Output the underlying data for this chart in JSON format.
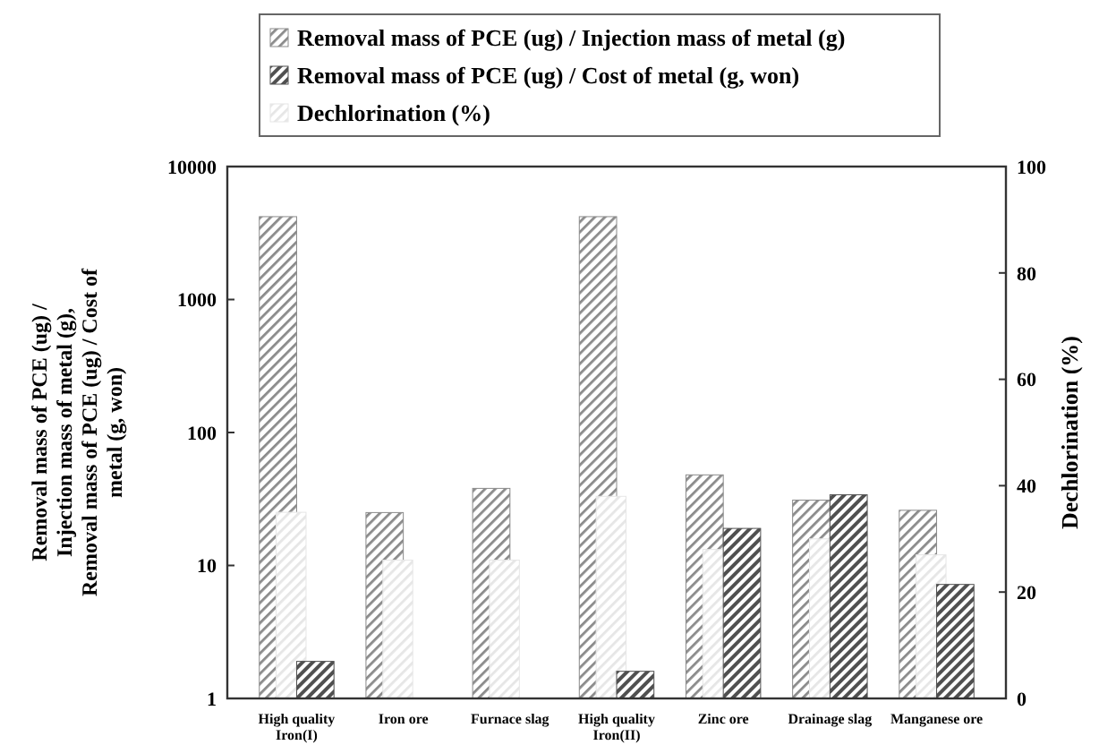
{
  "chart_data": {
    "type": "bar",
    "categories": [
      "High quality Iron(I)",
      "Iron ore",
      "Furnace slag",
      "High quality Iron(II)",
      "Zinc ore",
      "Drainage slag",
      "Manganese ore"
    ],
    "series": [
      {
        "name": "Removal mass of PCE (ug) / Injection mass of metal (g)",
        "color": "#8a8a8a",
        "values": [
          4200,
          25,
          38,
          4200,
          48,
          31,
          26
        ]
      },
      {
        "name": "Removal mass of PCE (ug) / Cost of metal (g, won)",
        "color": "#505050",
        "values": [
          1.9,
          null,
          null,
          1.6,
          19,
          34,
          7.2
        ]
      },
      {
        "name": "Dechlorination (%)",
        "color": "#e6e6e6",
        "axis": "y2",
        "values": [
          35,
          26,
          26,
          38,
          28,
          30,
          27
        ]
      }
    ],
    "log": "y",
    "ylim": [
      1,
      10000
    ],
    "yticks": [
      1,
      10,
      100,
      1000,
      10000
    ],
    "y2lim": [
      0,
      100
    ],
    "y2ticks": [
      0,
      20,
      40,
      60,
      80,
      100
    ],
    "ylabel": "Removal mass of PCE (ug) / Injection mass of metal (g), Removal mass of PCE (ug) / Cost of metal (g, won)",
    "y2label": "Dechlorination (%)",
    "legend": "top",
    "grid": false
  }
}
